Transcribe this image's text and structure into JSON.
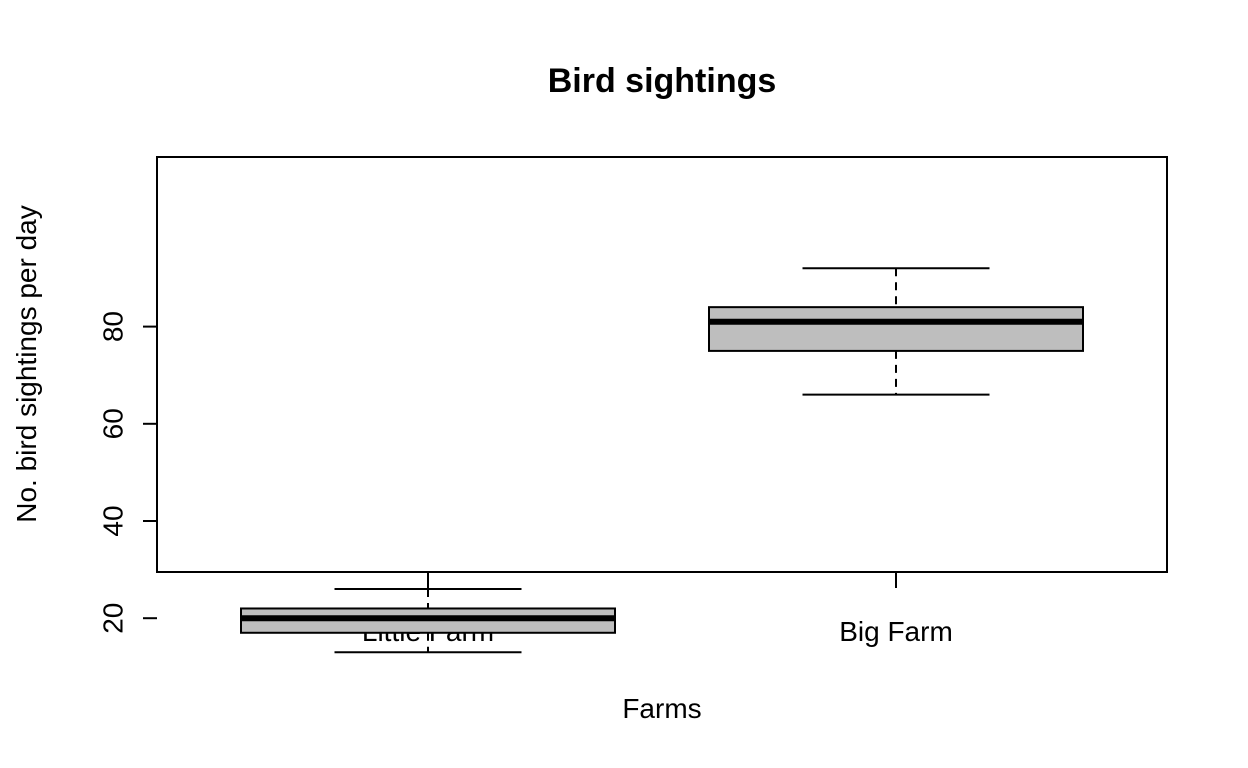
{
  "chart_data": {
    "type": "boxplot",
    "title": "Bird sightings",
    "xlabel": "Farms",
    "ylabel": "No. bird sightings per day",
    "categories": [
      "Little Farm",
      "Big Farm"
    ],
    "boxes": [
      {
        "category": "Little Farm",
        "whisker_low": 13,
        "q1": 17,
        "median": 20,
        "q3": 22,
        "whisker_high": 26
      },
      {
        "category": "Big Farm",
        "whisker_low": 66,
        "q1": 75,
        "median": 81,
        "q3": 84,
        "whisker_high": 92
      }
    ],
    "y_ticks": [
      20,
      40,
      60,
      80
    ],
    "ylim": [
      10,
      95
    ],
    "grid": false,
    "legend": "none",
    "box_fill": "#bebebe",
    "line_color": "#000000"
  }
}
